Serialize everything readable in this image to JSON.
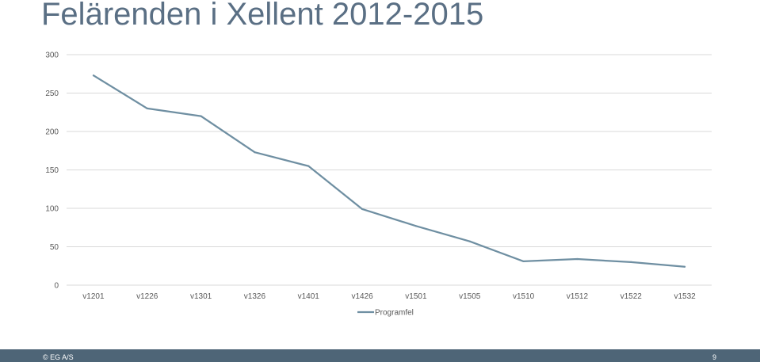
{
  "title": "Felärenden i Xellent 2012-2015",
  "footer": {
    "copyright": "© EG A/S",
    "page_number": "9"
  },
  "chart_data": {
    "type": "line",
    "title": "Felärenden i Xellent 2012-2015",
    "categories": [
      "v1201",
      "v1226",
      "v1301",
      "v1326",
      "v1401",
      "v1426",
      "v1501",
      "v1505",
      "v1510",
      "v1512",
      "v1522",
      "v1532"
    ],
    "series": [
      {
        "name": "Programfel",
        "values": [
          273,
          230,
          220,
          173,
          155,
          99,
          77,
          57,
          31,
          34,
          30,
          24
        ]
      }
    ],
    "ylim": [
      0,
      300
    ],
    "yticks": [
      0,
      50,
      100,
      150,
      200,
      250,
      300
    ],
    "grid": true,
    "legend": "bottom",
    "colors": {
      "line": "#6f8fa2",
      "grid": "#d9d9d9",
      "footer": "#4e6577"
    }
  }
}
